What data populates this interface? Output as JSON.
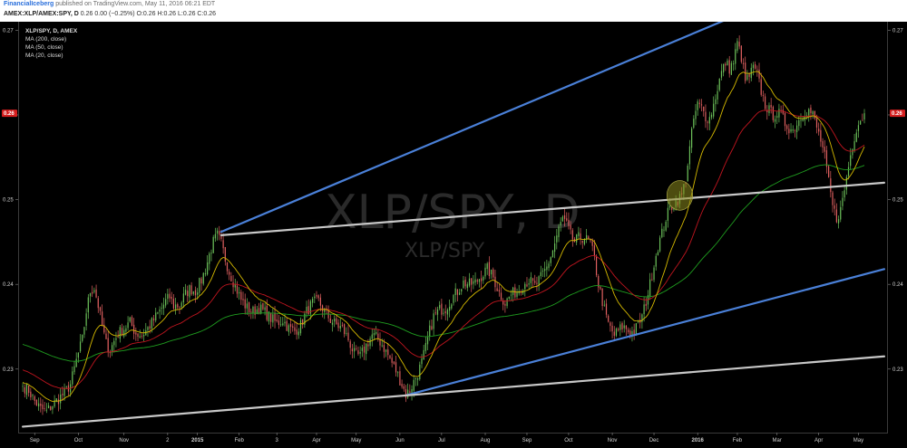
{
  "header": {
    "author": "FinancialIceberg",
    "published": " published on TradingView.com, May 11, 2016 06:21 EDT",
    "symbol": "AMEX:XLP/AMEX:SPY, D",
    "ohlc": " 0.26  0.00 (−0.25%)  O:0.26  H:0.26  L:0.26  C:0.26"
  },
  "legend": {
    "title": "XLP/SPY, D, AMEX",
    "items": [
      "MA (200, close)",
      "MA (50, close)",
      "MA (20, close)"
    ]
  },
  "watermark": {
    "main": "XLP/SPY, D",
    "sub": "XLP/SPY"
  },
  "price_tag": "0.26",
  "colors": {
    "background": "#000000",
    "up_candle": "#6bbf59",
    "down_candle": "#e06060",
    "ma200": "#1f9d1f",
    "ma50": "#c0151f",
    "ma20": "#d4b800",
    "trend_blue": "#4a80d8",
    "trend_grey": "#c8c8c8",
    "highlight": "#8c8a1e",
    "price_tag": "#d61f1f"
  },
  "chart_data": {
    "type": "candlestick",
    "y_ticks": [
      "0.27",
      "0.26",
      "0.25",
      "0.24",
      "0.23"
    ],
    "y_tick_values": [
      0.27,
      0.26,
      0.25,
      0.24,
      0.23
    ],
    "ylim": [
      0.2225,
      0.271
    ],
    "x_labels": [
      {
        "text": "Sep",
        "i": 6,
        "bold": false
      },
      {
        "text": "Oct",
        "i": 28,
        "bold": false
      },
      {
        "text": "Nov",
        "i": 51,
        "bold": false
      },
      {
        "text": "2",
        "i": 73,
        "bold": false
      },
      {
        "text": "2015",
        "i": 88,
        "bold": true
      },
      {
        "text": "Feb",
        "i": 109,
        "bold": false
      },
      {
        "text": "3",
        "i": 128,
        "bold": false
      },
      {
        "text": "Apr",
        "i": 148,
        "bold": false
      },
      {
        "text": "May",
        "i": 168,
        "bold": false
      },
      {
        "text": "Jun",
        "i": 190,
        "bold": false
      },
      {
        "text": "Jul",
        "i": 211,
        "bold": false
      },
      {
        "text": "Aug",
        "i": 233,
        "bold": false
      },
      {
        "text": "Sep",
        "i": 254,
        "bold": false
      },
      {
        "text": "Oct",
        "i": 275,
        "bold": false
      },
      {
        "text": "Nov",
        "i": 297,
        "bold": false
      },
      {
        "text": "Dec",
        "i": 318,
        "bold": false
      },
      {
        "text": "2016",
        "i": 340,
        "bold": true
      },
      {
        "text": "Feb",
        "i": 360,
        "bold": false
      },
      {
        "text": "Mar",
        "i": 380,
        "bold": false
      },
      {
        "text": "Apr",
        "i": 401,
        "bold": false
      },
      {
        "text": "May",
        "i": 421,
        "bold": false
      }
    ],
    "anchors": [
      [
        0,
        0.228
      ],
      [
        3,
        0.2275
      ],
      [
        6,
        0.2262
      ],
      [
        9,
        0.2253
      ],
      [
        12,
        0.225
      ],
      [
        15,
        0.2258
      ],
      [
        18,
        0.2265
      ],
      [
        21,
        0.2272
      ],
      [
        24,
        0.2282
      ],
      [
        27,
        0.231
      ],
      [
        30,
        0.2335
      ],
      [
        32,
        0.2368
      ],
      [
        34,
        0.2392
      ],
      [
        36,
        0.2396
      ],
      [
        38,
        0.2375
      ],
      [
        40,
        0.235
      ],
      [
        42,
        0.233
      ],
      [
        44,
        0.2322
      ],
      [
        46,
        0.2333
      ],
      [
        48,
        0.2342
      ],
      [
        51,
        0.2348
      ],
      [
        54,
        0.2355
      ],
      [
        57,
        0.2342
      ],
      [
        60,
        0.234
      ],
      [
        63,
        0.2348
      ],
      [
        66,
        0.2358
      ],
      [
        68,
        0.2365
      ],
      [
        70,
        0.2372
      ],
      [
        72,
        0.238
      ],
      [
        74,
        0.2385
      ],
      [
        76,
        0.2375
      ],
      [
        79,
        0.2375
      ],
      [
        81,
        0.2385
      ],
      [
        84,
        0.2395
      ],
      [
        87,
        0.2392
      ],
      [
        90,
        0.2405
      ],
      [
        92,
        0.2418
      ],
      [
        94,
        0.2435
      ],
      [
        96,
        0.245
      ],
      [
        98,
        0.2458
      ],
      [
        100,
        0.2448
      ],
      [
        102,
        0.243
      ],
      [
        104,
        0.2415
      ],
      [
        107,
        0.2398
      ],
      [
        110,
        0.2382
      ],
      [
        113,
        0.2372
      ],
      [
        116,
        0.2368
      ],
      [
        119,
        0.2372
      ],
      [
        122,
        0.2367
      ],
      [
        125,
        0.236
      ],
      [
        128,
        0.2354
      ],
      [
        131,
        0.2358
      ],
      [
        134,
        0.2348
      ],
      [
        137,
        0.2345
      ],
      [
        140,
        0.2352
      ],
      [
        143,
        0.2368
      ],
      [
        146,
        0.2378
      ],
      [
        149,
        0.238
      ],
      [
        152,
        0.2368
      ],
      [
        155,
        0.2358
      ],
      [
        158,
        0.2352
      ],
      [
        161,
        0.2348
      ],
      [
        164,
        0.2335
      ],
      [
        167,
        0.2318
      ],
      [
        170,
        0.2315
      ],
      [
        173,
        0.2328
      ],
      [
        176,
        0.234
      ],
      [
        179,
        0.2336
      ],
      [
        182,
        0.2325
      ],
      [
        185,
        0.2312
      ],
      [
        188,
        0.2298
      ],
      [
        191,
        0.2282
      ],
      [
        193,
        0.227
      ],
      [
        195,
        0.2275
      ],
      [
        197,
        0.2285
      ],
      [
        199,
        0.2295
      ],
      [
        201,
        0.2308
      ],
      [
        203,
        0.2325
      ],
      [
        205,
        0.2345
      ],
      [
        207,
        0.2362
      ],
      [
        210,
        0.237
      ],
      [
        213,
        0.2372
      ],
      [
        216,
        0.2383
      ],
      [
        219,
        0.2392
      ],
      [
        222,
        0.2402
      ],
      [
        225,
        0.24
      ],
      [
        228,
        0.2402
      ],
      [
        231,
        0.241
      ],
      [
        234,
        0.2418
      ],
      [
        237,
        0.2408
      ],
      [
        240,
        0.239
      ],
      [
        243,
        0.2378
      ],
      [
        246,
        0.2388
      ],
      [
        249,
        0.2392
      ],
      [
        252,
        0.24
      ],
      [
        255,
        0.2405
      ],
      [
        258,
        0.2398
      ],
      [
        261,
        0.2408
      ],
      [
        264,
        0.242
      ],
      [
        267,
        0.244
      ],
      [
        270,
        0.2465
      ],
      [
        272,
        0.2478
      ],
      [
        274,
        0.247
      ],
      [
        276,
        0.2458
      ],
      [
        278,
        0.245
      ],
      [
        280,
        0.2455
      ],
      [
        283,
        0.2455
      ],
      [
        286,
        0.2448
      ],
      [
        288,
        0.243
      ],
      [
        290,
        0.24
      ],
      [
        292,
        0.238
      ],
      [
        294,
        0.236
      ],
      [
        296,
        0.2348
      ],
      [
        298,
        0.234
      ],
      [
        300,
        0.2345
      ],
      [
        302,
        0.235
      ],
      [
        304,
        0.2348
      ],
      [
        306,
        0.2342
      ],
      [
        308,
        0.2345
      ],
      [
        310,
        0.2352
      ],
      [
        312,
        0.2362
      ],
      [
        314,
        0.238
      ],
      [
        316,
        0.24
      ],
      [
        318,
        0.2425
      ],
      [
        320,
        0.2445
      ],
      [
        322,
        0.246
      ],
      [
        324,
        0.2478
      ],
      [
        326,
        0.249
      ],
      [
        328,
        0.2495
      ],
      [
        330,
        0.25
      ],
      [
        332,
        0.2505
      ],
      [
        334,
        0.2525
      ],
      [
        336,
        0.256
      ],
      [
        338,
        0.2595
      ],
      [
        340,
        0.2612
      ],
      [
        342,
        0.2608
      ],
      [
        344,
        0.2598
      ],
      [
        346,
        0.2596
      ],
      [
        348,
        0.2612
      ],
      [
        350,
        0.2632
      ],
      [
        352,
        0.265
      ],
      [
        354,
        0.2662
      ],
      [
        356,
        0.2655
      ],
      [
        358,
        0.2662
      ],
      [
        360,
        0.2685
      ],
      [
        362,
        0.2668
      ],
      [
        364,
        0.264
      ],
      [
        366,
        0.2646
      ],
      [
        368,
        0.2655
      ],
      [
        370,
        0.2648
      ],
      [
        372,
        0.2628
      ],
      [
        374,
        0.2612
      ],
      [
        376,
        0.2605
      ],
      [
        378,
        0.26
      ],
      [
        380,
        0.2602
      ],
      [
        382,
        0.26
      ],
      [
        384,
        0.259
      ],
      [
        386,
        0.2585
      ],
      [
        388,
        0.2582
      ],
      [
        390,
        0.259
      ],
      [
        392,
        0.2598
      ],
      [
        394,
        0.2605
      ],
      [
        396,
        0.2605
      ],
      [
        398,
        0.26
      ],
      [
        400,
        0.2585
      ],
      [
        402,
        0.257
      ],
      [
        404,
        0.255
      ],
      [
        406,
        0.252
      ],
      [
        408,
        0.2492
      ],
      [
        410,
        0.2478
      ],
      [
        412,
        0.2488
      ],
      [
        414,
        0.2512
      ],
      [
        416,
        0.254
      ],
      [
        418,
        0.2565
      ],
      [
        420,
        0.2585
      ],
      [
        422,
        0.2595
      ],
      [
        424,
        0.26
      ]
    ],
    "trendlines": [
      {
        "name": "upper-channel",
        "color": "blue",
        "from": [
          100,
          0.2462
        ],
        "to": [
          362,
          0.272
        ]
      },
      {
        "name": "lower-channel",
        "color": "blue",
        "from": [
          193,
          0.2269
        ],
        "to": [
          434,
          0.2418
        ]
      },
      {
        "name": "breakout-line",
        "color": "grey",
        "from": [
          100,
          0.2458
        ],
        "to": [
          434,
          0.252
        ]
      },
      {
        "name": "base-line",
        "color": "grey",
        "from": [
          0,
          0.2232
        ],
        "to": [
          434,
          0.2315
        ]
      }
    ],
    "highlight": {
      "center": [
        331,
        0.2505
      ],
      "rx_days": 6.5,
      "ry": 0.00175
    }
  }
}
